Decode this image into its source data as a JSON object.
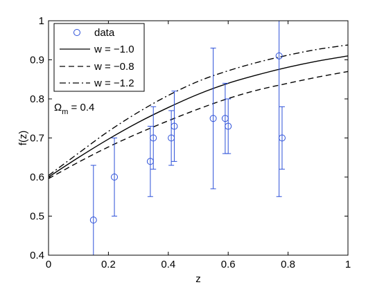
{
  "chart_data": {
    "type": "scatter",
    "xlabel": "z",
    "ylabel": "f(z)",
    "xlim": [
      0,
      1
    ],
    "ylim": [
      0.4,
      1
    ],
    "xticks": [
      0,
      0.2,
      0.4,
      0.6,
      0.8,
      1
    ],
    "xtick_labels": [
      "0",
      "0.2",
      "0.4",
      "0.6",
      "0.8",
      "1"
    ],
    "yticks": [
      0.4,
      0.5,
      0.6,
      0.7,
      0.8,
      0.9,
      1
    ],
    "ytick_labels": [
      "0.4",
      "0.5",
      "0.6",
      "0.7",
      "0.8",
      "0.9",
      "1"
    ],
    "grid": false,
    "legend_position": "top-left",
    "annotation": {
      "symbol": "Ω",
      "subscript": "m",
      "rest": " = 0.4"
    },
    "series": [
      {
        "name": "data",
        "kind": "errorbar",
        "color": "#2b4fd8",
        "marker": "circle",
        "points": [
          {
            "x": 0.15,
            "y": 0.49,
            "ylo": 0.35,
            "yhi": 0.63
          },
          {
            "x": 0.22,
            "y": 0.6,
            "ylo": 0.5,
            "yhi": 0.7
          },
          {
            "x": 0.34,
            "y": 0.64,
            "ylo": 0.55,
            "yhi": 0.73
          },
          {
            "x": 0.35,
            "y": 0.7,
            "ylo": 0.62,
            "yhi": 0.78
          },
          {
            "x": 0.41,
            "y": 0.7,
            "ylo": 0.63,
            "yhi": 0.77
          },
          {
            "x": 0.42,
            "y": 0.73,
            "ylo": 0.64,
            "yhi": 0.82
          },
          {
            "x": 0.55,
            "y": 0.75,
            "ylo": 0.57,
            "yhi": 0.93
          },
          {
            "x": 0.59,
            "y": 0.75,
            "ylo": 0.66,
            "yhi": 0.84
          },
          {
            "x": 0.6,
            "y": 0.73,
            "ylo": 0.66,
            "yhi": 0.8
          },
          {
            "x": 0.77,
            "y": 0.91,
            "ylo": 0.55,
            "yhi": 1.0
          },
          {
            "x": 0.78,
            "y": 0.7,
            "ylo": 0.62,
            "yhi": 0.78
          }
        ]
      },
      {
        "name": "w = −1.0",
        "kind": "line",
        "color": "#000000",
        "dash": "solid",
        "x": [
          0,
          0.1,
          0.2,
          0.3,
          0.4,
          0.5,
          0.6,
          0.7,
          0.8,
          0.9,
          1.0
        ],
        "y": [
          0.6,
          0.65,
          0.697,
          0.74,
          0.778,
          0.812,
          0.84,
          0.862,
          0.881,
          0.897,
          0.91
        ]
      },
      {
        "name": "w = −0.8",
        "kind": "line",
        "color": "#000000",
        "dash": "dashed",
        "x": [
          0,
          0.1,
          0.2,
          0.3,
          0.4,
          0.5,
          0.6,
          0.7,
          0.8,
          0.9,
          1.0
        ],
        "y": [
          0.596,
          0.638,
          0.677,
          0.712,
          0.744,
          0.774,
          0.801,
          0.823,
          0.84,
          0.856,
          0.87
        ]
      },
      {
        "name": "w = −1.2",
        "kind": "line",
        "color": "#000000",
        "dash": "dashdot",
        "x": [
          0,
          0.1,
          0.2,
          0.3,
          0.4,
          0.5,
          0.6,
          0.7,
          0.8,
          0.9,
          1.0
        ],
        "y": [
          0.604,
          0.661,
          0.717,
          0.766,
          0.809,
          0.845,
          0.872,
          0.894,
          0.912,
          0.927,
          0.938
        ]
      }
    ]
  }
}
